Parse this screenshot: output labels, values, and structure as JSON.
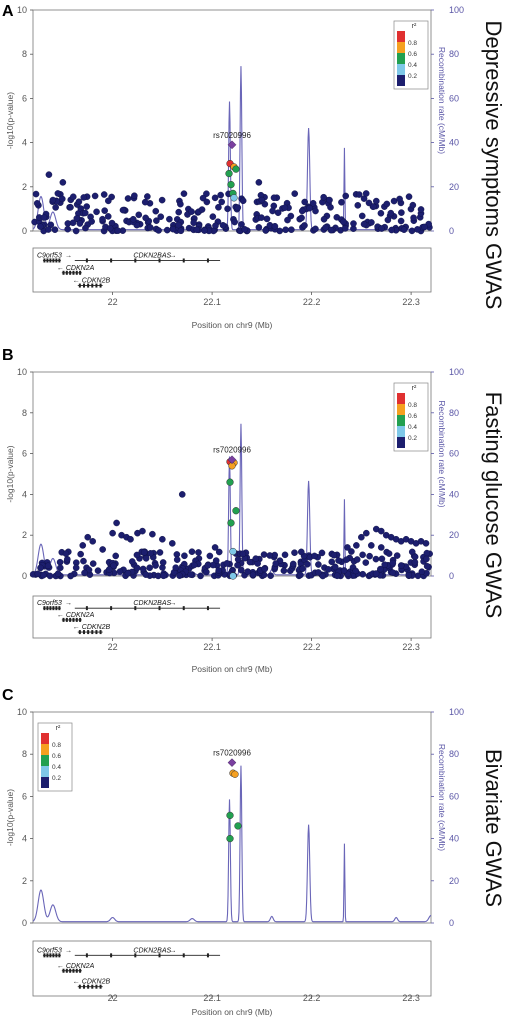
{
  "figure": {
    "colors": {
      "recomb": "#6a66b8",
      "axis": "#555555",
      "lead": "#7a3fa0",
      "axis_right": "#5a56a6"
    },
    "ld_colors": [
      "#1c1e6e",
      "#7ec8e8",
      "#22a050",
      "#f5a020",
      "#e03030"
    ],
    "ld_legend": {
      "title": "r²",
      "ticks": [
        "0.2",
        "0.4",
        "0.6",
        "0.8"
      ]
    },
    "gene_track": {
      "genes": [
        {
          "label": "C9orf53",
          "strand": "+"
        },
        {
          "label": "CDKN2BAS",
          "strand": "+"
        },
        {
          "label": "CDKN2A",
          "strand": "-"
        },
        {
          "label": "CDKN2B",
          "strand": "-"
        }
      ]
    }
  },
  "chart_data": [
    {
      "panel": "A",
      "type": "scatter",
      "side_title": "Depressive symptoms GWAS",
      "xlabel": "Position on chr9 (Mb)",
      "ylabel": "-log10(p-value)",
      "ylabel_right": "Recombination rate (cM/Mb)",
      "xlim": [
        21.92,
        22.32
      ],
      "xticks": [
        "22",
        "22.1",
        "22.2",
        "22.3"
      ],
      "ylim": [
        0,
        10
      ],
      "yticks": [
        "0",
        "2",
        "4",
        "6",
        "8",
        "10"
      ],
      "ylim_right": [
        0,
        100
      ],
      "yticks_right": [
        "0",
        "20",
        "40",
        "60",
        "80",
        "100"
      ],
      "legend_position": "top-right",
      "lead_snp": {
        "label": "rs7020996",
        "x": 22.12,
        "y": 3.9
      },
      "snps": {
        "high_ld": [
          [
            22.118,
            3.05,
            4
          ],
          [
            22.122,
            2.9,
            3
          ],
          [
            22.117,
            2.6,
            2
          ],
          [
            22.124,
            2.8,
            2
          ],
          [
            22.119,
            2.1,
            2
          ],
          [
            22.121,
            1.7,
            2
          ],
          [
            22.122,
            1.5,
            1
          ]
        ],
        "background_seed": 7,
        "background_count": 290,
        "background_max": 1.7,
        "background_spikes": [
          [
            21.936,
            2.55
          ],
          [
            21.95,
            2.2
          ],
          [
            21.945,
            1.7
          ],
          [
            21.94,
            1.4
          ],
          [
            22.103,
            1.5
          ],
          [
            22.147,
            2.2
          ],
          [
            22.15,
            1.4
          ],
          [
            22.218,
            1.4
          ],
          [
            22.23,
            1.3
          ],
          [
            22.262,
            1.1
          ]
        ],
        "empty_ranges": []
      }
    },
    {
      "panel": "B",
      "type": "scatter",
      "side_title": "Fasting glucose GWAS",
      "xlabel": "Position on chr9 (Mb)",
      "ylabel": "-log10(p-value)",
      "ylabel_right": "Recombination rate (cM/Mb)",
      "xlim": [
        21.92,
        22.32
      ],
      "xticks": [
        "22",
        "22.1",
        "22.2",
        "22.3"
      ],
      "ylim": [
        0,
        10
      ],
      "yticks": [
        "0",
        "2",
        "4",
        "6",
        "8",
        "10"
      ],
      "ylim_right": [
        0,
        100
      ],
      "yticks_right": [
        "0",
        "20",
        "40",
        "60",
        "80",
        "100"
      ],
      "legend_position": "top-right",
      "lead_snp": {
        "label": "rs7020996",
        "x": 22.12,
        "y": 5.7
      },
      "snps": {
        "high_ld": [
          [
            22.118,
            5.6,
            4
          ],
          [
            22.122,
            5.55,
            3
          ],
          [
            22.12,
            5.4,
            3
          ],
          [
            22.118,
            4.6,
            2
          ],
          [
            22.124,
            3.2,
            2
          ],
          [
            22.119,
            2.6,
            2
          ],
          [
            22.121,
            1.2,
            1
          ],
          [
            22.121,
            0.0,
            1
          ]
        ],
        "background_seed": 11,
        "background_count": 300,
        "background_max": 1.2,
        "background_spikes": [
          [
            22.0,
            2.1
          ],
          [
            22.004,
            2.6
          ],
          [
            22.009,
            2.0
          ],
          [
            22.014,
            1.9
          ],
          [
            22.018,
            1.8
          ],
          [
            22.025,
            2.1
          ],
          [
            22.03,
            2.2
          ],
          [
            22.04,
            2.05
          ],
          [
            22.05,
            1.8
          ],
          [
            22.06,
            1.6
          ],
          [
            22.07,
            4.0
          ],
          [
            21.975,
            1.9
          ],
          [
            21.97,
            1.5
          ],
          [
            21.98,
            1.7
          ],
          [
            21.99,
            1.3
          ],
          [
            22.103,
            1.4
          ],
          [
            22.245,
            1.5
          ],
          [
            22.25,
            1.9
          ],
          [
            22.255,
            2.1
          ],
          [
            22.26,
            1.5
          ],
          [
            22.265,
            2.3
          ],
          [
            22.27,
            2.2
          ],
          [
            22.275,
            2.0
          ],
          [
            22.28,
            1.9
          ],
          [
            22.285,
            1.8
          ],
          [
            22.29,
            1.7
          ],
          [
            22.295,
            1.8
          ],
          [
            22.3,
            1.7
          ],
          [
            22.305,
            1.6
          ],
          [
            22.31,
            1.7
          ],
          [
            22.315,
            1.6
          ],
          [
            22.24,
            1.2
          ],
          [
            22.235,
            0.8
          ],
          [
            22.236,
            1.4
          ],
          [
            22.27,
            1.4
          ],
          [
            22.286,
            1.0
          ]
        ],
        "empty_ranges": []
      }
    },
    {
      "panel": "C",
      "type": "scatter",
      "side_title": "Bivariate GWAS",
      "xlabel": "Position on chr9 (Mb)",
      "ylabel": "-log10(p-value)",
      "ylabel_right": "Recombination rate (cM/Mb)",
      "xlim": [
        21.92,
        22.32
      ],
      "xticks": [
        "22",
        "22.1",
        "22.2",
        "22.3"
      ],
      "ylim": [
        0,
        10
      ],
      "yticks": [
        "0",
        "2",
        "4",
        "6",
        "8",
        "10"
      ],
      "ylim_right": [
        0,
        100
      ],
      "yticks_right": [
        "0",
        "20",
        "40",
        "60",
        "80",
        "100"
      ],
      "legend_position": "top-left",
      "lead_snp": {
        "label": "rs7020996",
        "x": 22.12,
        "y": 7.6
      },
      "snps": {
        "high_ld": [
          [
            22.121,
            7.1,
            3
          ],
          [
            22.123,
            7.05,
            3
          ],
          [
            22.118,
            5.1,
            2
          ],
          [
            22.118,
            4.0,
            2
          ],
          [
            22.126,
            4.6,
            2
          ]
        ],
        "background_seed": 0,
        "background_count": 0,
        "background_max": 0,
        "background_spikes": [],
        "empty_ranges": []
      }
    }
  ]
}
